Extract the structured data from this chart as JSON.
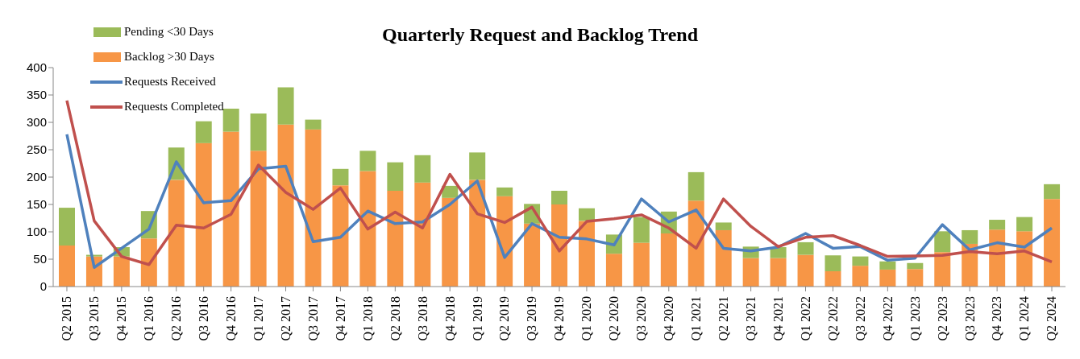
{
  "chart_data": {
    "type": "bar",
    "title": "Quarterly Request and Backlog Trend",
    "stacked": true,
    "legend": "top left",
    "grid": false,
    "marker": "none",
    "line_style": "solid",
    "categories": [
      "Q2 2015",
      "Q3 2015",
      "Q4 2015",
      "Q1 2016",
      "Q2 2016",
      "Q3 2016",
      "Q4 2016",
      "Q1 2017",
      "Q2 2017",
      "Q3 2017",
      "Q4 2017",
      "Q1 2018",
      "Q2 2018",
      "Q3 2018",
      "Q4 2018",
      "Q1 2019",
      "Q2 2019",
      "Q3 2019",
      "Q4 2019",
      "Q1 2020",
      "Q2 2020",
      "Q3 2020",
      "Q4 2020",
      "Q1 2021",
      "Q2 2021",
      "Q3 2021",
      "Q4 2021",
      "Q1 2022",
      "Q2 2022",
      "Q3 2022",
      "Q4 2022",
      "Q1 2023",
      "Q2 2023",
      "Q3 2023",
      "Q4 2023",
      "Q1 2024",
      "Q2 2024"
    ],
    "ylim": [
      0,
      400
    ],
    "yticks": [
      0,
      50,
      100,
      150,
      200,
      250,
      300,
      350,
      400
    ],
    "series": [
      {
        "name": "Backlog >30 Days",
        "color": "#f79646",
        "values": [
          75,
          55,
          55,
          88,
          195,
          262,
          283,
          248,
          296,
          287,
          185,
          211,
          175,
          190,
          162,
          195,
          165,
          115,
          150,
          120,
          60,
          80,
          97,
          157,
          103,
          52,
          52,
          58,
          28,
          38,
          31,
          32,
          63,
          78,
          104,
          101,
          160
        ]
      },
      {
        "name": "Pending <30 Days",
        "color": "#9bbb59",
        "values": [
          69,
          3,
          17,
          50,
          59,
          40,
          42,
          68,
          68,
          18,
          30,
          37,
          52,
          50,
          22,
          50,
          16,
          36,
          25,
          23,
          35,
          47,
          40,
          52,
          14,
          21,
          20,
          23,
          29,
          17,
          15,
          11,
          38,
          25,
          18,
          26,
          27
        ]
      },
      {
        "name": "Requests Received",
        "type": "line",
        "color": "#4f81bd",
        "values": [
          278,
          35,
          70,
          105,
          228,
          153,
          157,
          215,
          220,
          82,
          90,
          138,
          115,
          118,
          150,
          193,
          53,
          115,
          90,
          87,
          76,
          160,
          118,
          140,
          70,
          65,
          72,
          97,
          70,
          73,
          48,
          52,
          113,
          67,
          80,
          72,
          107
        ]
      },
      {
        "name": "Requests Completed",
        "type": "line",
        "color": "#c0504d",
        "values": [
          340,
          120,
          55,
          40,
          112,
          107,
          132,
          222,
          172,
          141,
          180,
          105,
          136,
          107,
          205,
          133,
          117,
          145,
          65,
          119,
          124,
          131,
          107,
          70,
          160,
          110,
          73,
          90,
          93,
          75,
          55,
          56,
          57,
          64,
          60,
          65,
          45
        ]
      }
    ]
  }
}
